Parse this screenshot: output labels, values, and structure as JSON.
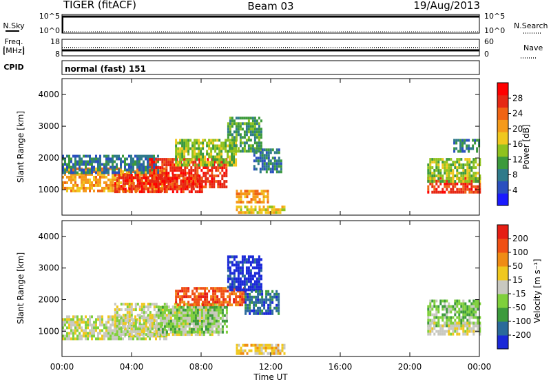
{
  "header": {
    "station": "TIGER (fitACF)",
    "beam": "Beam 03",
    "date": "19/Aug/2013"
  },
  "top_panels": {
    "nsky_label": "N.Sky",
    "nsearch_label": "N.Search",
    "noise_ticks": [
      "10^5",
      "10^0"
    ],
    "freq_label_line1": "Freq.",
    "freq_label_line2": "[MHz]",
    "freq_ticks": [
      "18",
      "8"
    ],
    "nave_label": "Nave",
    "nave_ticks": [
      "60",
      "0"
    ],
    "cpid_label": "CPID",
    "cpid_value": "normal (fast) 151"
  },
  "chart_data": [
    {
      "type": "heatmap",
      "name": "power",
      "ylabel": "Slant Range [km]",
      "yticks": [
        "4000",
        "3000",
        "2000",
        "1000"
      ],
      "ylim": [
        200,
        4500
      ],
      "colorbar_label": "Power [dB]",
      "colorbar_ticks": [
        "28",
        "24",
        "20",
        "16",
        "12",
        "8",
        "4"
      ],
      "colorbar_colors": [
        "#1a1aff",
        "#2a4fbf",
        "#2f7a8a",
        "#3c9a3c",
        "#8fc21e",
        "#f0c81e",
        "#f59a1a",
        "#f06414",
        "#e62814",
        "#ff0000"
      ],
      "regions": [
        {
          "t0": 0.0,
          "t1": 6.0,
          "r0": 1000,
          "r1": 1700,
          "level": 6
        },
        {
          "t0": 0.0,
          "t1": 5.5,
          "r0": 1500,
          "r1": 2100,
          "level": 2
        },
        {
          "t0": 3.0,
          "t1": 8.0,
          "r0": 900,
          "r1": 1500,
          "level": 8
        },
        {
          "t0": 5.0,
          "t1": 9.5,
          "r0": 1100,
          "r1": 2000,
          "level": 8
        },
        {
          "t0": 6.5,
          "t1": 10.0,
          "r0": 1800,
          "r1": 2600,
          "level": 4
        },
        {
          "t0": 9.5,
          "t1": 11.5,
          "r0": 2200,
          "r1": 3300,
          "level": 3
        },
        {
          "t0": 10.0,
          "t1": 11.8,
          "r0": 600,
          "r1": 1000,
          "level": 6
        },
        {
          "t0": 11.0,
          "t1": 12.6,
          "r0": 1600,
          "r1": 2300,
          "level": 2
        },
        {
          "t0": 10.0,
          "t1": 12.8,
          "r0": 250,
          "r1": 500,
          "level": 5
        },
        {
          "t0": 21.0,
          "t1": 24.0,
          "r0": 900,
          "r1": 1400,
          "level": 8
        },
        {
          "t0": 21.0,
          "t1": 24.0,
          "r0": 1300,
          "r1": 2000,
          "level": 4
        },
        {
          "t0": 22.5,
          "t1": 24.0,
          "r0": 2200,
          "r1": 2600,
          "level": 2
        }
      ]
    },
    {
      "type": "heatmap",
      "name": "velocity",
      "ylabel": "Slant Range [km]",
      "yticks": [
        "4000",
        "3000",
        "2000",
        "1000"
      ],
      "ylim": [
        200,
        4500
      ],
      "colorbar_label": "Velocity [m s⁻¹]",
      "colorbar_ticks": [
        "200",
        "100",
        "50",
        "15",
        "-15",
        "-50",
        "-100",
        "-200"
      ],
      "colorbar_colors": [
        "#1a28d8",
        "#2a6a9a",
        "#3c9a3c",
        "#7fd03c",
        "#c8c8c0",
        "#f0c81e",
        "#f08c14",
        "#f05014",
        "#e61e14"
      ],
      "regions": [
        {
          "t0": 0.0,
          "t1": 6.0,
          "r0": 800,
          "r1": 1500,
          "level": 4
        },
        {
          "t0": 3.0,
          "t1": 9.0,
          "r0": 900,
          "r1": 1900,
          "level": 4
        },
        {
          "t0": 5.5,
          "t1": 9.5,
          "r0": 1000,
          "r1": 1800,
          "level": 3
        },
        {
          "t0": 6.5,
          "t1": 10.5,
          "r0": 1800,
          "r1": 2400,
          "level": 7
        },
        {
          "t0": 9.5,
          "t1": 11.5,
          "r0": 2300,
          "r1": 3400,
          "level": 0
        },
        {
          "t0": 10.5,
          "t1": 12.5,
          "r0": 1600,
          "r1": 2300,
          "level": 1
        },
        {
          "t0": 10.0,
          "t1": 12.8,
          "r0": 300,
          "r1": 600,
          "level": 5
        },
        {
          "t0": 21.0,
          "t1": 24.0,
          "r0": 1200,
          "r1": 2000,
          "level": 3
        },
        {
          "t0": 21.0,
          "t1": 24.0,
          "r0": 900,
          "r1": 1300,
          "level": 4
        }
      ]
    }
  ],
  "x_axis": {
    "ticks": [
      "00:00",
      "04:00",
      "08:00",
      "12:00",
      "16:00",
      "20:00",
      "00:00"
    ],
    "label": "Time UT",
    "range_hours": [
      0,
      24
    ]
  }
}
